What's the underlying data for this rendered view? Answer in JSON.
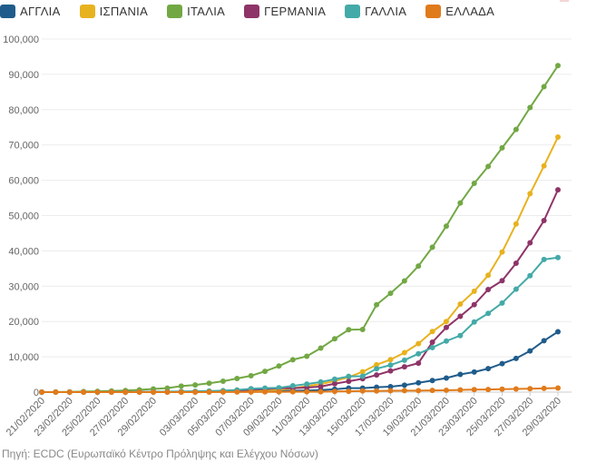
{
  "source": "Πηγή: ECDC (Ευρωπαϊκό Κέντρο Πρόληψης και Ελέγχου Νόσων)",
  "chart_data": {
    "type": "line",
    "title": "",
    "xlabel": "",
    "ylabel": "",
    "ylim": [
      0,
      100000
    ],
    "yticks": [
      0,
      10000,
      20000,
      30000,
      40000,
      50000,
      60000,
      70000,
      80000,
      90000,
      100000
    ],
    "ytick_labels": [
      "0",
      "10,000",
      "20,000",
      "30,000",
      "40,000",
      "50,000",
      "60,000",
      "70,000",
      "80,000",
      "90,000",
      "100,000"
    ],
    "grid": true,
    "legend": "top",
    "x": [
      "21/02/2020",
      "22/02/2020",
      "23/02/2020",
      "24/02/2020",
      "25/02/2020",
      "26/02/2020",
      "27/02/2020",
      "28/02/2020",
      "29/02/2020",
      "01/03/2020",
      "02/03/2020",
      "03/03/2020",
      "04/03/2020",
      "05/03/2020",
      "06/03/2020",
      "07/03/2020",
      "08/03/2020",
      "09/03/2020",
      "10/03/2020",
      "11/03/2020",
      "12/03/2020",
      "13/03/2020",
      "14/03/2020",
      "15/03/2020",
      "16/03/2020",
      "17/03/2020",
      "18/03/2020",
      "19/03/2020",
      "20/03/2020",
      "21/03/2020",
      "22/03/2020",
      "23/03/2020",
      "24/03/2020",
      "25/03/2020",
      "26/03/2020",
      "27/03/2020",
      "28/03/2020",
      "29/03/2020"
    ],
    "xtick_labels": [
      "21/02/2020",
      "23/02/2020",
      "25/02/2020",
      "27/02/2020",
      "29/02/2020",
      "03/03/2020",
      "05/03/2020",
      "07/03/2020",
      "09/03/2020",
      "11/03/2020",
      "13/03/2020",
      "15/03/2020",
      "17/03/2020",
      "19/03/2020",
      "21/03/2020",
      "23/03/2020",
      "25/03/2020",
      "27/03/2020",
      "29/03/2020"
    ],
    "series": [
      {
        "name": "ΑΓΓΛΙΑ",
        "color": "#1f5c8b",
        "values": [
          9,
          9,
          9,
          13,
          13,
          13,
          15,
          20,
          23,
          36,
          40,
          51,
          87,
          116,
          164,
          209,
          278,
          321,
          373,
          460,
          590,
          798,
          1140,
          1140,
          1391,
          1543,
          1950,
          2626,
          3269,
          3983,
          5018,
          5683,
          6650,
          8077,
          9529,
          11658,
          14543,
          17089
        ]
      },
      {
        "name": "ΙΣΠΑΝΙΑ",
        "color": "#e8b21f",
        "values": [
          2,
          2,
          2,
          2,
          2,
          3,
          12,
          25,
          32,
          45,
          84,
          120,
          165,
          222,
          259,
          400,
          500,
          673,
          1073,
          1695,
          2277,
          3146,
          4231,
          5753,
          7753,
          9191,
          11178,
          13716,
          17147,
          19980,
          24926,
          28572,
          33089,
          39673,
          47610,
          56188,
          64059,
          72248
        ]
      },
      {
        "name": "ΙΤΑΛΙΑ",
        "color": "#72a844",
        "values": [
          3,
          20,
          79,
          150,
          227,
          320,
          445,
          650,
          888,
          1128,
          1694,
          2036,
          2502,
          3089,
          3858,
          4636,
          5883,
          7375,
          9172,
          10149,
          12462,
          15113,
          17660,
          17750,
          24747,
          27980,
          31506,
          35713,
          41035,
          47021,
          53578,
          59138,
          63927,
          69176,
          74386,
          80589,
          86498,
          92472
        ]
      },
      {
        "name": "ΓΕΡΜΑΝΙΑ",
        "color": "#8e3468",
        "values": [
          16,
          16,
          16,
          16,
          16,
          18,
          21,
          26,
          57,
          57,
          129,
          157,
          196,
          262,
          400,
          684,
          847,
          1112,
          1139,
          1296,
          1567,
          2369,
          3062,
          3795,
          4838,
          6012,
          7156,
          8198,
          14138,
          18323,
          21463,
          24774,
          29056,
          31554,
          36508,
          42288,
          48582,
          57298
        ]
      },
      {
        "name": "ΓΑΛΛΙΑ",
        "color": "#44aaa8",
        "values": [
          12,
          12,
          12,
          12,
          14,
          18,
          38,
          57,
          100,
          130,
          191,
          212,
          285,
          423,
          613,
          949,
          1126,
          1209,
          1784,
          2281,
          2876,
          3661,
          4469,
          4499,
          6633,
          7652,
          9043,
          10871,
          12612,
          14459,
          16018,
          19856,
          22304,
          25233,
          29155,
          32964,
          37575,
          38105
        ]
      },
      {
        "name": "ΕΛΛΑΔΑ",
        "color": "#e07b1b",
        "values": [
          0,
          0,
          0,
          0,
          0,
          1,
          3,
          4,
          4,
          7,
          7,
          7,
          9,
          31,
          45,
          46,
          73,
          73,
          84,
          89,
          99,
          190,
          228,
          331,
          331,
          387,
          418,
          418,
          495,
          530,
          624,
          695,
          743,
          821,
          892,
          966,
          1061,
          1156
        ]
      }
    ]
  }
}
